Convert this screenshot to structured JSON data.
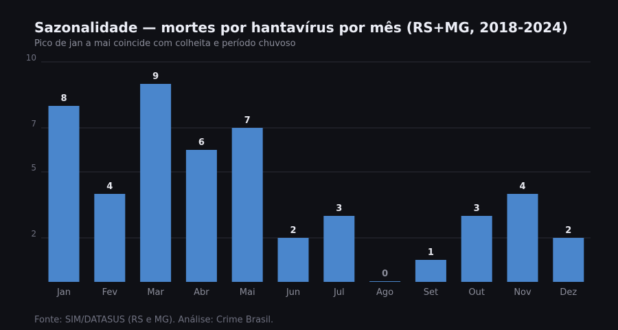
{
  "chart_data": {
    "type": "bar",
    "title": "Sazonalidade — mortes por hantavírus por mês (RS+MG, 2018-2024)",
    "subtitle": "Pico de jan a mai coincide com colheita e período chuvoso",
    "source": "Fonte: SIM/DATASUS (RS e MG). Análise: Crime Brasil.",
    "categories": [
      "Jan",
      "Fev",
      "Mar",
      "Abr",
      "Mai",
      "Jun",
      "Jul",
      "Ago",
      "Set",
      "Out",
      "Nov",
      "Dez"
    ],
    "values": [
      8,
      4,
      9,
      6,
      7,
      2,
      3,
      0,
      1,
      3,
      4,
      2
    ],
    "ylim": [
      0,
      10
    ],
    "yticks": [
      2,
      5,
      7,
      10
    ],
    "grid": true,
    "legend": "none",
    "xlabel": "",
    "ylabel": "",
    "bar_color": "#4a86cc",
    "grid_color": "#2b2d36",
    "background": "#0f1015"
  }
}
